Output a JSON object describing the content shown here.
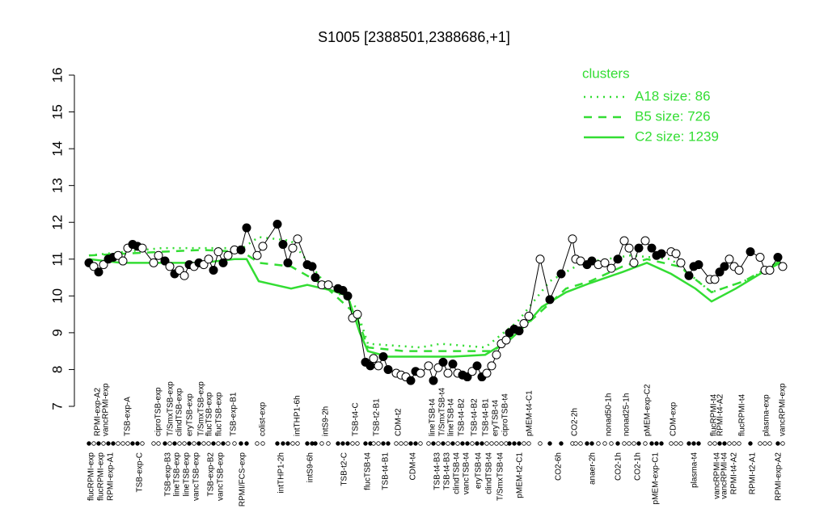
{
  "chart_data": {
    "type": "line",
    "title": "S1005 [2388501,2388686,+1]",
    "xlim": [
      0,
      875
    ],
    "ylim": [
      7,
      16
    ],
    "yticks": [
      7,
      8,
      9,
      10,
      11,
      12,
      13,
      14,
      15,
      16
    ],
    "legend_title": "clusters",
    "legend": "topright",
    "points": {
      "color": "#000000",
      "x": [
        10,
        16,
        22,
        28,
        34,
        40,
        46,
        52,
        58,
        64,
        70,
        76,
        90,
        96,
        104,
        110,
        116,
        122,
        128,
        134,
        140,
        146,
        152,
        158,
        164,
        170,
        176,
        182,
        190,
        198,
        205,
        218,
        225,
        243,
        250,
        256,
        262,
        268,
        280,
        286,
        290,
        298,
        306,
        318,
        324,
        330,
        336,
        342,
        352,
        358,
        362,
        368,
        374,
        380,
        390,
        396,
        402,
        408,
        414,
        420,
        430,
        436,
        442,
        448,
        454,
        460,
        466,
        472,
        478,
        484,
        490,
        496,
        502,
        508,
        514,
        520,
        526,
        530,
        536,
        542,
        548,
        554,
        568,
        580,
        594,
        608,
        612,
        618,
        626,
        632,
        640,
        648,
        656,
        664,
        672,
        678,
        684,
        690,
        698,
        706,
        712,
        718,
        730,
        736,
        742,
        752,
        758,
        764,
        778,
        784,
        790,
        796,
        802,
        808,
        814,
        828,
        840,
        846,
        852,
        862,
        868
      ],
      "values": [
        10.9,
        10.8,
        10.65,
        10.85,
        11.0,
        11.05,
        11.1,
        10.95,
        11.3,
        11.4,
        11.35,
        11.3,
        10.9,
        11.1,
        10.95,
        10.8,
        10.6,
        10.7,
        10.55,
        10.85,
        10.8,
        10.9,
        10.85,
        11.0,
        10.7,
        11.2,
        10.9,
        11.1,
        11.25,
        11.25,
        11.85,
        11.1,
        11.35,
        11.95,
        11.4,
        10.9,
        11.3,
        11.55,
        10.85,
        10.8,
        10.5,
        10.3,
        10.3,
        10.2,
        10.15,
        10.0,
        9.4,
        9.5,
        8.2,
        8.1,
        8.3,
        8.1,
        8.35,
        8.0,
        7.9,
        7.85,
        7.8,
        7.7,
        7.95,
        7.9,
        8.1,
        7.7,
        8.05,
        8.2,
        7.9,
        8.15,
        7.9,
        7.85,
        7.8,
        7.95,
        8.1,
        7.8,
        7.9,
        8.1,
        8.4,
        8.7,
        8.8,
        9.0,
        9.1,
        9.05,
        9.25,
        9.45,
        11.0,
        9.9,
        10.6,
        11.55,
        11.0,
        10.95,
        10.85,
        10.95,
        10.85,
        10.9,
        10.75,
        11.0,
        11.5,
        11.3,
        10.9,
        11.3,
        11.5,
        11.3,
        11.1,
        11.15,
        11.2,
        11.15,
        10.9,
        10.55,
        10.8,
        10.85,
        10.45,
        10.45,
        10.65,
        10.8,
        11.0,
        10.8,
        10.7,
        11.2,
        11.05,
        10.7,
        10.7,
        11.05,
        10.8
      ],
      "fill": [
        "black",
        "white",
        "black",
        "white",
        "black",
        "black",
        "white",
        "white",
        "white",
        "black",
        "black",
        "white",
        "white",
        "white",
        "black",
        "white",
        "black",
        "white",
        "white",
        "black",
        "white",
        "black",
        "white",
        "white",
        "black",
        "white",
        "black",
        "white",
        "white",
        "black",
        "black",
        "white",
        "white",
        "black",
        "black",
        "black",
        "white",
        "white",
        "black",
        "black",
        "black",
        "white",
        "white",
        "black",
        "black",
        "black",
        "white",
        "white",
        "black",
        "black",
        "white",
        "white",
        "black",
        "black",
        "white",
        "white",
        "white",
        "black",
        "black",
        "white",
        "white",
        "black",
        "white",
        "black",
        "white",
        "black",
        "white",
        "black",
        "black",
        "white",
        "black",
        "black",
        "white",
        "white",
        "white",
        "white",
        "white",
        "black",
        "black",
        "black",
        "white",
        "white",
        "white",
        "black",
        "black",
        "white",
        "white",
        "white",
        "black",
        "black",
        "white",
        "white",
        "white",
        "black",
        "white",
        "white",
        "white",
        "black",
        "white",
        "black",
        "black",
        "black",
        "white",
        "white",
        "white",
        "black",
        "black",
        "black",
        "white",
        "white",
        "black",
        "black",
        "white",
        "white",
        "white",
        "black",
        "white",
        "white",
        "white",
        "black",
        "white"
      ]
    },
    "series": [
      {
        "name": "A18 size: 86",
        "color": "#33dd33",
        "dash": "dotted",
        "x": [
          10,
          100,
          200,
          220,
          260,
          300,
          340,
          355,
          420,
          445,
          500,
          540,
          580,
          620,
          680,
          730,
          780,
          820,
          865
        ],
        "values": [
          11.1,
          11.3,
          11.3,
          11.6,
          11.5,
          10.4,
          9.7,
          8.7,
          8.6,
          8.7,
          8.6,
          9.3,
          10.4,
          10.9,
          11.1,
          11.0,
          10.1,
          10.4,
          10.9
        ]
      },
      {
        "name": "B5 size: 726",
        "color": "#33dd33",
        "dash": "dashed",
        "x": [
          10,
          100,
          150,
          200,
          220,
          260,
          300,
          340,
          355,
          400,
          460,
          510,
          540,
          560,
          600,
          630,
          670,
          700,
          740,
          780,
          820,
          865
        ],
        "values": [
          11.1,
          11.2,
          11.25,
          11.2,
          10.9,
          10.8,
          10.3,
          9.5,
          8.6,
          8.5,
          8.5,
          8.5,
          9.0,
          9.4,
          10.2,
          10.4,
          10.8,
          11.0,
          10.8,
          10.1,
          10.4,
          10.95
        ]
      },
      {
        "name": "C2 size: 1239",
        "color": "#33dd33",
        "dash": "solid",
        "x": [
          10,
          50,
          100,
          150,
          190,
          205,
          220,
          240,
          260,
          280,
          310,
          330,
          345,
          355,
          380,
          420,
          460,
          500,
          530,
          550,
          570,
          600,
          630,
          670,
          700,
          730,
          760,
          780,
          810,
          840,
          865
        ],
        "values": [
          11.0,
          10.9,
          10.9,
          10.9,
          11.0,
          11.0,
          10.4,
          10.3,
          10.2,
          10.3,
          10.15,
          10.0,
          9.0,
          8.5,
          8.35,
          8.35,
          8.35,
          8.4,
          8.8,
          9.2,
          9.7,
          10.1,
          10.35,
          10.65,
          10.9,
          10.6,
          10.2,
          9.85,
          10.2,
          10.6,
          10.9
        ]
      }
    ],
    "top_labels": [
      {
        "label": "RPMI-exp-A2",
        "x": 18
      },
      {
        "label": "vancRPMI-exp",
        "x": 28
      },
      {
        "label": "TSB-exp-A",
        "x": 55
      },
      {
        "label": "ciproTSB-exp",
        "x": 93
      },
      {
        "label": "T/SmxTSB-exp",
        "x": 108
      },
      {
        "label": "clindTSB-exp",
        "x": 119
      },
      {
        "label": "eryTSB-exp",
        "x": 132
      },
      {
        "label": "T/SmxTSB-exp",
        "x": 146
      },
      {
        "label": "flucTSB-exp",
        "x": 156
      },
      {
        "label": "flucTSB-exp",
        "x": 168
      },
      {
        "label": "TSB-exp-B1",
        "x": 186
      },
      {
        "label": "colist-exp",
        "x": 222
      },
      {
        "label": "intTHP1-6h",
        "x": 265
      },
      {
        "label": "intS9-2h",
        "x": 300
      },
      {
        "label": "TSB-t4-C",
        "x": 337
      },
      {
        "label": "TSB-t2-B1",
        "x": 363
      },
      {
        "label": "CDM-t2",
        "x": 390
      },
      {
        "label": "lineTSB-t4",
        "x": 432
      },
      {
        "label": "T/SmxTSB-t4",
        "x": 444
      },
      {
        "label": "lineTSB-t4",
        "x": 455
      },
      {
        "label": "TSB-t4-B2",
        "x": 468
      },
      {
        "label": "TSB-t4-B2",
        "x": 484
      },
      {
        "label": "TSB-t4-B1",
        "x": 498
      },
      {
        "label": "eryTSB-t4",
        "x": 510
      },
      {
        "label": "ciproTSB-t4",
        "x": 522
      },
      {
        "label": "pMEM-t4-C1",
        "x": 552
      },
      {
        "label": "CO2-2h",
        "x": 608
      },
      {
        "label": "nonad50-1h",
        "x": 650
      },
      {
        "label": "nonad25-1h",
        "x": 672
      },
      {
        "label": "pMEM-exp-C2",
        "x": 698
      },
      {
        "label": "CDM-exp",
        "x": 730
      },
      {
        "label": "flucRPMI-t4",
        "x": 780
      },
      {
        "label": "RPMI-t4-A2",
        "x": 788
      },
      {
        "label": "flucRPMI-t4",
        "x": 815
      },
      {
        "label": "plasma-exp",
        "x": 845
      },
      {
        "label": "vancRPMI-exp",
        "x": 865
      }
    ],
    "bottom_labels": [
      {
        "label": "flucRPMI-exp",
        "x": 10
      },
      {
        "label": "flucRPMI-exp",
        "x": 22
      },
      {
        "label": "RPMI-exp-A1",
        "x": 34
      },
      {
        "label": "TSB-exp-C",
        "x": 70
      },
      {
        "label": "TSB-exp-B3",
        "x": 105
      },
      {
        "label": "lineTSB-exp",
        "x": 116
      },
      {
        "label": "lineTSB-exp",
        "x": 128
      },
      {
        "label": "vancTSB-exp",
        "x": 140
      },
      {
        "label": "TSB-exp-B2",
        "x": 158
      },
      {
        "label": "vancTSB-exp",
        "x": 170
      },
      {
        "label": "RPMI/FCS-exp",
        "x": 197
      },
      {
        "label": "intTHP1-2h",
        "x": 245
      },
      {
        "label": "intS9-6h",
        "x": 281
      },
      {
        "label": "TSB-t2-C",
        "x": 323
      },
      {
        "label": "flucTSB-t4",
        "x": 352
      },
      {
        "label": "TSB-t4-B1",
        "x": 374
      },
      {
        "label": "CDM-t4",
        "x": 408
      },
      {
        "label": "TSB-t4-B3",
        "x": 438
      },
      {
        "label": "TSB-t4-B3",
        "x": 450
      },
      {
        "label": "clindTSB-t4",
        "x": 462
      },
      {
        "label": "vancTSB-t4",
        "x": 474
      },
      {
        "label": "eryTSB-t4",
        "x": 489
      },
      {
        "label": "clindTSB-t4",
        "x": 502
      },
      {
        "label": "T/SmxTSB-t4",
        "x": 516
      },
      {
        "label": "pMEM-t2-C1",
        "x": 540
      },
      {
        "label": "CO2-6h",
        "x": 588
      },
      {
        "label": "anaer-2h",
        "x": 630
      },
      {
        "label": "CO2-1h",
        "x": 662
      },
      {
        "label": "CO2-1h",
        "x": 686
      },
      {
        "label": "pMEM-exp-C1",
        "x": 708
      },
      {
        "label": "plasma-t4",
        "x": 756
      },
      {
        "label": "vancRPMI-t4",
        "x": 784
      },
      {
        "label": "vancRPMI-t4",
        "x": 793
      },
      {
        "label": "RPMI-t4-A2",
        "x": 805
      },
      {
        "label": "RPMI-t2-A1",
        "x": 828
      },
      {
        "label": "RPMI-exp-A2",
        "x": 860
      }
    ]
  }
}
